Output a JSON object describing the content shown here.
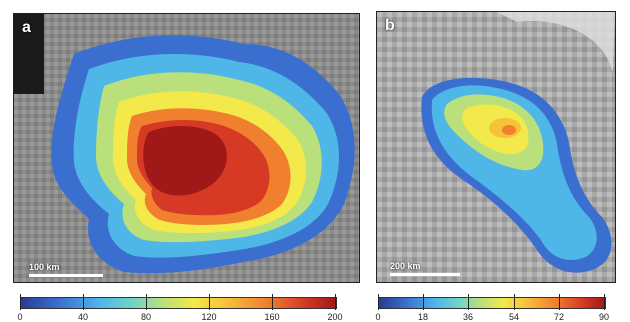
{
  "panel_a": {
    "letter": "a",
    "scale_label": "100 km",
    "colorbar": {
      "ticks": [
        "0",
        "40",
        "80",
        "120",
        "160",
        "200"
      ],
      "min": 0,
      "max": 200
    }
  },
  "panel_b": {
    "letter": "b",
    "scale_label": "200 km",
    "colorbar": {
      "ticks": [
        "0",
        "18",
        "36",
        "54",
        "72",
        "90"
      ],
      "min": 0,
      "max": 90
    }
  },
  "colors": {
    "low": "#2a3b8f",
    "mid_low": "#4fb6e8",
    "mid": "#b9e07a",
    "mid_high": "#f3e94a",
    "high": "#f0802e",
    "max": "#a01818",
    "background": "#8e8e8e"
  }
}
